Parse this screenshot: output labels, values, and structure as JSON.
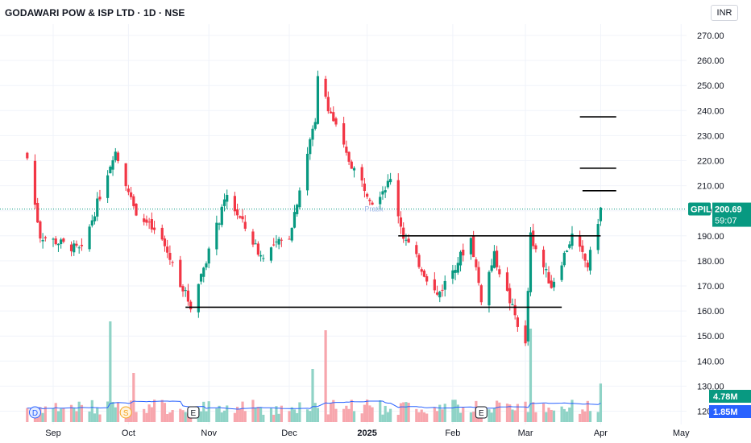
{
  "header": {
    "title": "GODAWARI POW & ISP LTD · 1D · NSE",
    "currency": "INR"
  },
  "price_label": {
    "ticker": "GPIL",
    "price": "200.69",
    "countdown": "59:07"
  },
  "volume_labels": {
    "volume": "4.78M",
    "volume_ma": "1.85M"
  },
  "watermark": "Pratik",
  "markers": [
    {
      "letter": "D",
      "date": "2024-08-26",
      "color": "#2962ff"
    },
    {
      "letter": "S",
      "date": "2024-09-30",
      "color": "#f5a623"
    },
    {
      "letter": "E",
      "date": "2024-10-26",
      "color": "#131722"
    },
    {
      "letter": "E",
      "date": "2025-02-14",
      "color": "#131722"
    }
  ],
  "colors": {
    "up": "#089981",
    "down": "#f23645",
    "volume_up": "#8fd3c6",
    "volume_down": "#f7a6ad",
    "volume_ma": "#2962ff",
    "price_line": "#089981",
    "axis_text": "#131722",
    "grid": "#f0f3fa"
  },
  "chart_data": {
    "type": "candlestick",
    "title": "GODAWARI POW & ISP LTD · 1D · NSE",
    "ylim": [
      120,
      280
    ],
    "y_ticks": [
      "120.00",
      "130.00",
      "140.00",
      "150.00",
      "160.00",
      "170.00",
      "180.00",
      "190.00",
      "200.00",
      "210.00",
      "220.00",
      "230.00",
      "240.00",
      "250.00",
      "260.00",
      "270.00"
    ],
    "x_tick_labels": [
      {
        "label": "Sep",
        "date": "2024-09-02"
      },
      {
        "label": "Oct",
        "date": "2024-10-01"
      },
      {
        "label": "Nov",
        "date": "2024-11-01"
      },
      {
        "label": "Dec",
        "date": "2024-12-02"
      },
      {
        "label": "2025",
        "date": "2025-01-01"
      },
      {
        "label": "Feb",
        "date": "2025-02-03"
      },
      {
        "label": "Mar",
        "date": "2025-03-03"
      },
      {
        "label": "Apr",
        "date": "2025-04-01"
      },
      {
        "label": "May",
        "date": "2025-05-02"
      }
    ],
    "last_price": 200.69,
    "key_points": [
      {
        "date": "2024-08-23",
        "price": 221,
        "note": "start"
      },
      {
        "date": "2024-08-28",
        "price": 190
      },
      {
        "date": "2024-09-13",
        "price": 184
      },
      {
        "date": "2024-09-26",
        "price": 225,
        "note": "local high"
      },
      {
        "date": "2024-10-03",
        "price": 201
      },
      {
        "date": "2024-10-14",
        "price": 188
      },
      {
        "date": "2024-10-25",
        "price": 162,
        "note": "low"
      },
      {
        "date": "2024-11-08",
        "price": 206
      },
      {
        "date": "2024-11-21",
        "price": 182
      },
      {
        "date": "2024-12-02",
        "price": 190
      },
      {
        "date": "2024-12-12",
        "price": 237
      },
      {
        "date": "2024-12-13",
        "price": 253,
        "note": "peak wick"
      },
      {
        "date": "2024-12-24",
        "price": 222
      },
      {
        "date": "2025-01-03",
        "price": 204
      },
      {
        "date": "2025-01-10",
        "price": 212
      },
      {
        "date": "2025-01-15",
        "price": 190
      },
      {
        "date": "2025-01-28",
        "price": 166
      },
      {
        "date": "2025-02-10",
        "price": 189
      },
      {
        "date": "2025-02-14",
        "price": 165
      },
      {
        "date": "2025-02-19",
        "price": 182
      },
      {
        "date": "2025-03-03",
        "price": 146,
        "note": "low wick"
      },
      {
        "date": "2025-03-05",
        "price": 190
      },
      {
        "date": "2025-03-13",
        "price": 170
      },
      {
        "date": "2025-03-21",
        "price": 190
      },
      {
        "date": "2025-03-27",
        "price": 178
      },
      {
        "date": "2025-04-01",
        "price": 200.69,
        "note": "last"
      }
    ],
    "horizontal_lines": [
      {
        "price": 161.5,
        "from": "2024-10-23",
        "to": "2025-03-17",
        "note": "support"
      },
      {
        "price": 190,
        "from": "2025-01-13",
        "to": "2025-04-01",
        "note": "resistance"
      },
      {
        "price": 208,
        "from": "2025-03-25",
        "to": "2025-04-07",
        "note": "target"
      },
      {
        "price": 217,
        "from": "2025-03-24",
        "to": "2025-04-07",
        "note": "target"
      },
      {
        "price": 237.5,
        "from": "2025-03-24",
        "to": "2025-04-07",
        "note": "target"
      }
    ],
    "volume": {
      "last": 4.78,
      "ma_last": 1.85,
      "unit": "M",
      "spikes": [
        {
          "date": "2024-09-24",
          "value": 12.5
        },
        {
          "date": "2024-10-03",
          "value": 6.1
        },
        {
          "date": "2024-12-11",
          "value": 6.6
        },
        {
          "date": "2024-12-16",
          "value": 11.4
        },
        {
          "date": "2025-03-05",
          "value": 11.6
        }
      ]
    }
  }
}
